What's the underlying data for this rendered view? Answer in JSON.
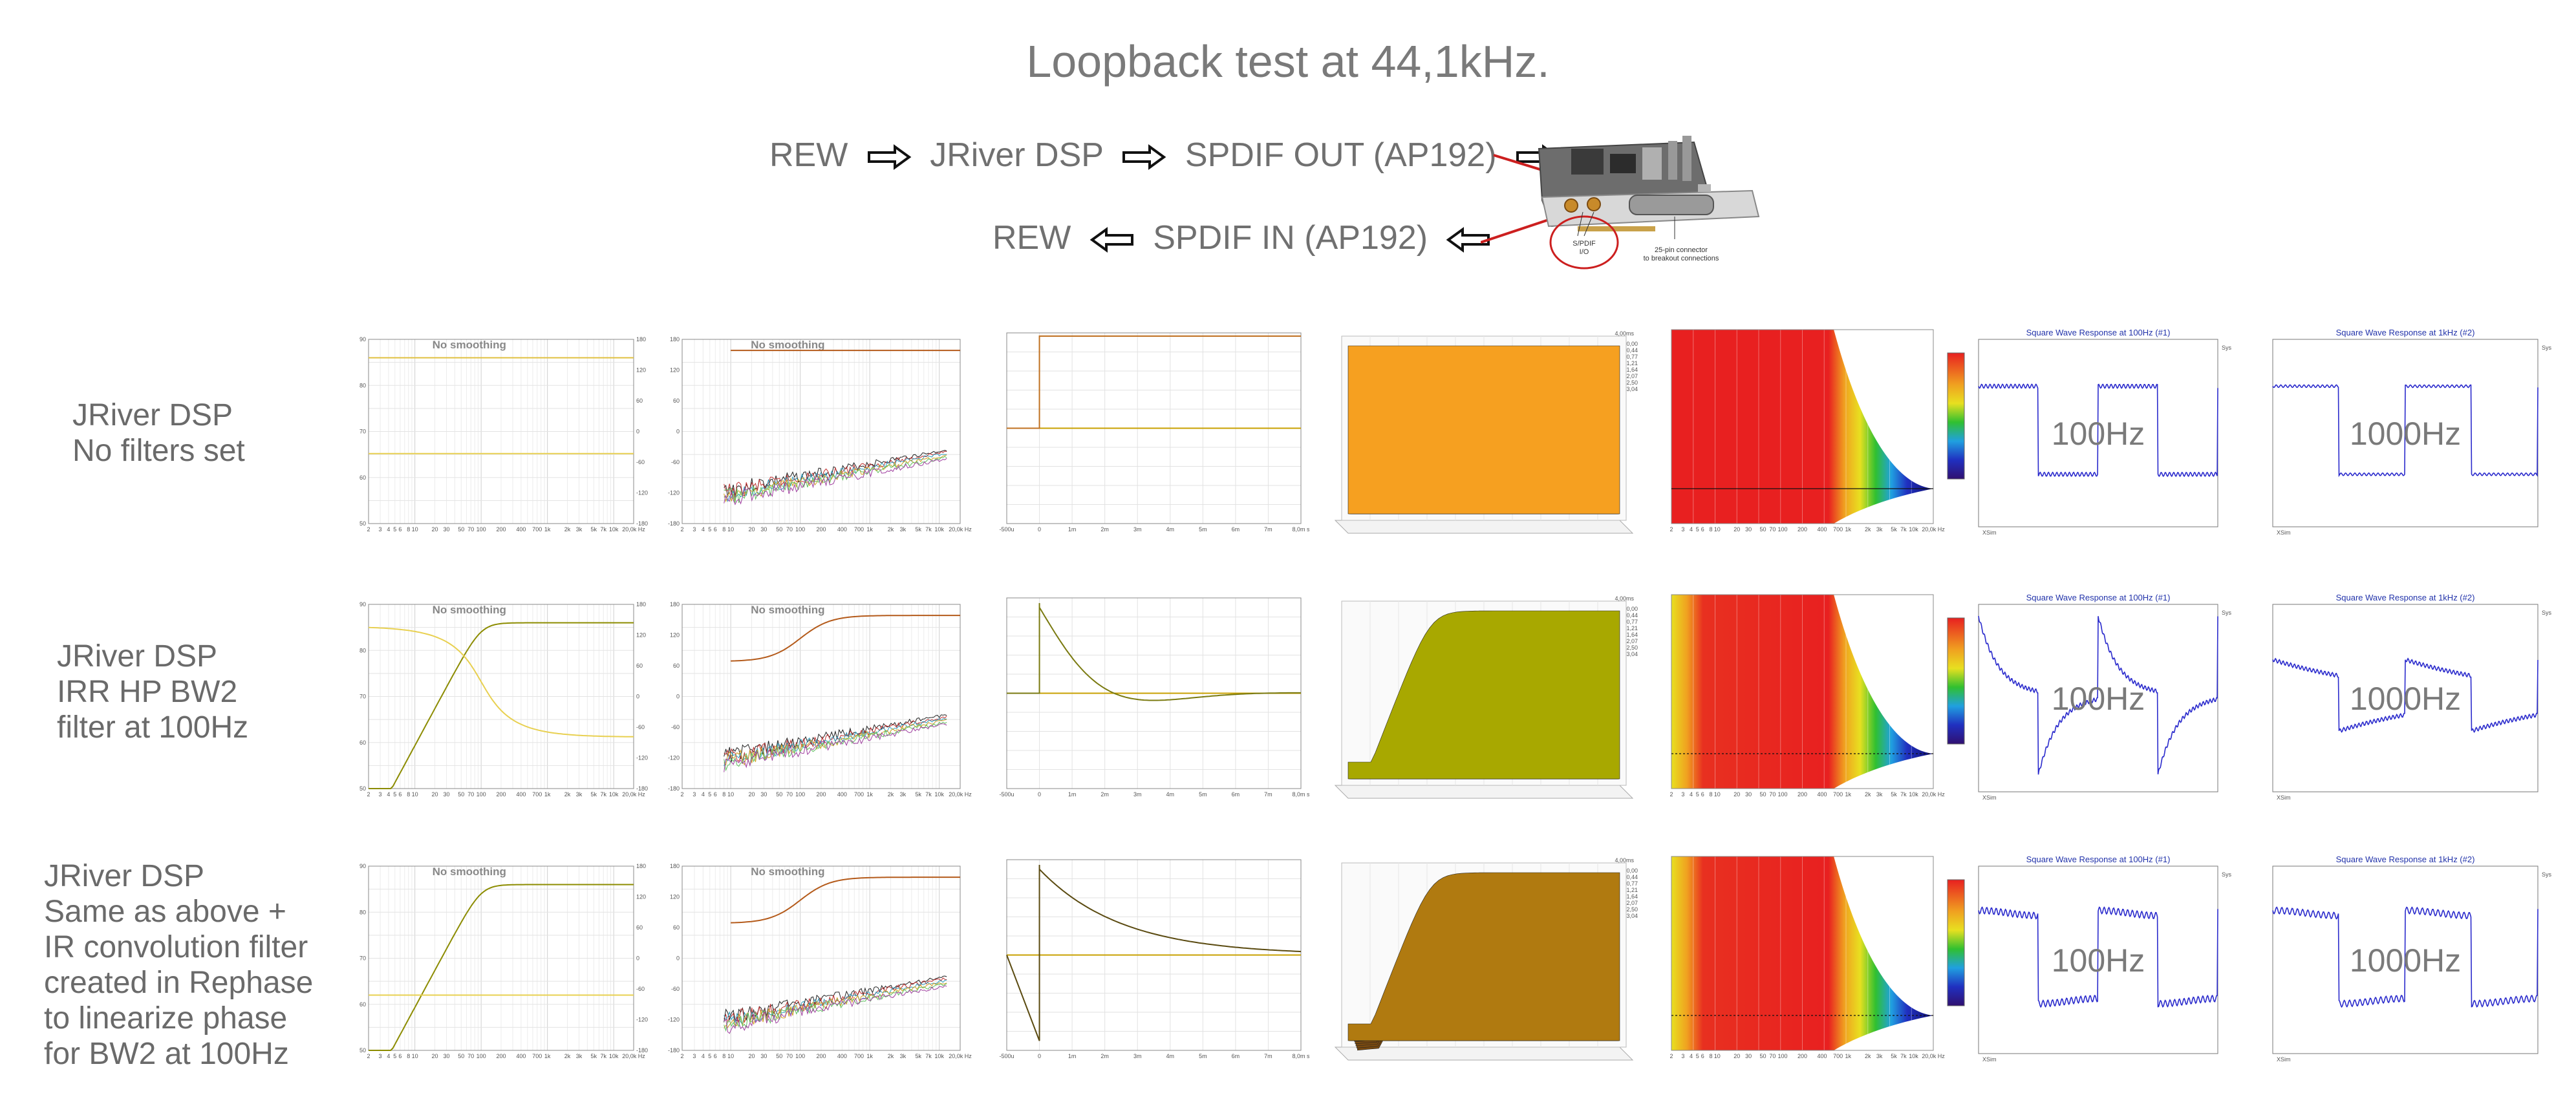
{
  "title": "Loopback test at 44,1kHz.",
  "flow": {
    "line1": [
      "REW",
      "JRiver DSP",
      "SPDIF OUT (AP192)"
    ],
    "line2": [
      "REW",
      "SPDIF IN (AP192)"
    ]
  },
  "card_image": {
    "spdif_label_1": "S/PDIF",
    "spdif_label_2": "I/O",
    "connector_label_1": "25-pin  connector",
    "connector_label_2": "to  breakout  connections"
  },
  "rows": [
    {
      "label_lines": [
        "JRiver DSP",
        "No filters set"
      ]
    },
    {
      "label_lines": [
        "JRiver DSP",
        "IRR HP BW2",
        "filter at 100Hz"
      ]
    },
    {
      "label_lines": [
        "JRiver DSP",
        "Same as above +",
        "IR convolution filter",
        "created in Rephase",
        "to linearize phase",
        "for BW2 at 100Hz"
      ]
    }
  ],
  "panels": {
    "smoothing_label": "No smoothing",
    "freq_ticks": [
      "2",
      "3",
      "4",
      "5",
      "6",
      "8",
      "10",
      "20",
      "30",
      "50",
      "70",
      "100",
      "200",
      "400",
      "700",
      "1k",
      "2k",
      "3k",
      "5k",
      "7k",
      "10k",
      "20,0k Hz"
    ],
    "spl_ticks": [
      "90",
      "80",
      "70",
      "60",
      "50"
    ],
    "phase_ticks": [
      "180",
      "120",
      "60",
      "0",
      "-60",
      "-120",
      "-180"
    ],
    "time_ticks": [
      "-500u",
      "0",
      "1m",
      "2m",
      "3m",
      "4m",
      "5m",
      "6m",
      "7m",
      "8,0m s"
    ],
    "wf_label": "4,00ms",
    "wf_slices": [
      "0,00",
      "0,44",
      "0,77",
      "1,21",
      "1,64",
      "2,07",
      "2,50",
      "3,04"
    ],
    "sq1_title": "Square Wave Response at 100Hz (#1)",
    "sq2_title": "Square Wave Response at 1kHz (#2)",
    "sq_legend": "Sys",
    "sq_tag": "XSim",
    "sq1_big": "100Hz",
    "sq2_big": "1000Hz"
  },
  "colors": {
    "accent_orange": "#f08c00",
    "accent_olive": "#8c8c00",
    "square_wave_blue": "#2a2acc",
    "arrow_red": "#cc1f1f"
  }
}
